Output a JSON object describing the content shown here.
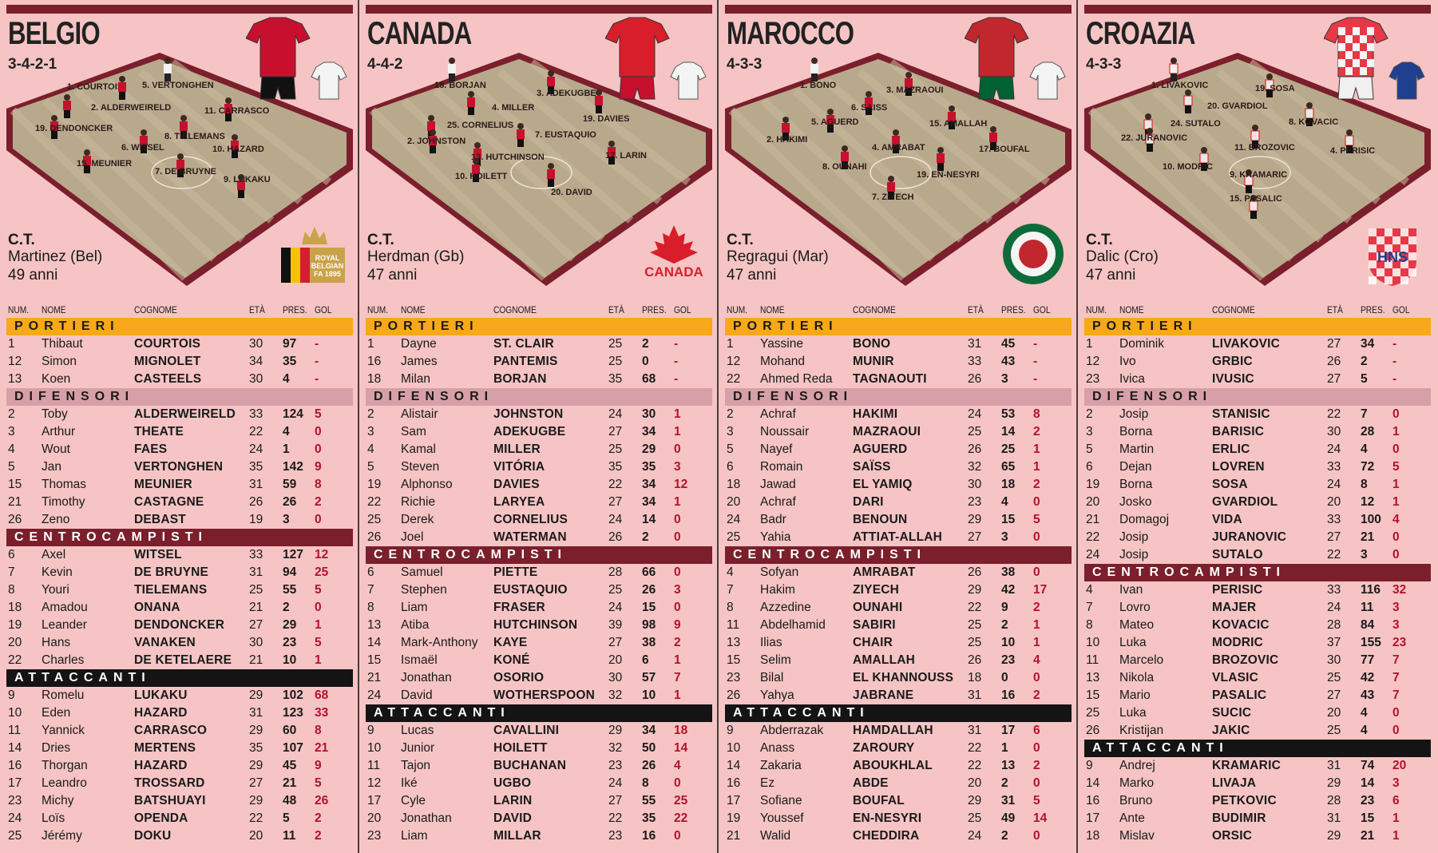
{
  "headers": {
    "num": "NUM.",
    "nome": "NOME",
    "cognome": "COGNOME",
    "eta": "ETÀ",
    "pres": "PRES.",
    "gol": "GOL"
  },
  "sections": {
    "portieri": "PORTIERI",
    "difensori": "DIFENSORI",
    "centrocampisti": "CENTROCAMPISTI",
    "attaccanti": "ATTACCANTI"
  },
  "colors": {
    "background": "#f6c4c4",
    "pitch": "#b9a98c",
    "pitch_border": "#7a1f2b",
    "portieri": "#f8a818",
    "difensori": "#d79fa8",
    "centrocampisti": "#7a1f2b",
    "attaccanti": "#141414",
    "goals": "#b3122b"
  },
  "teams": [
    {
      "name": "BELGIO",
      "formation": "3-4-2-1",
      "ct_label": "C.T.",
      "ct_name": "Martinez (Bel)",
      "ct_age": "49 anni",
      "badge_text": [
        "ROYAL",
        "BELGIAN",
        "FA 1895"
      ],
      "kit": "red-black",
      "pitch_players": [
        "1. COURTOIS",
        "5. VERTONGHEN",
        "2. ALDERWEIRELD",
        "11. CARRASCO",
        "19. DENDONCKER",
        "8. TIELEMANS",
        "6. WITSEL",
        "10. HAZARD",
        "15. MEUNIER",
        "7. DE BRUYNE",
        "9. LUKAKU"
      ],
      "portieri": [
        [
          "1",
          "Thibaut",
          "COURTOIS",
          "30",
          "97",
          "-"
        ],
        [
          "12",
          "Simon",
          "MIGNOLET",
          "34",
          "35",
          "-"
        ],
        [
          "13",
          "Koen",
          "CASTEELS",
          "30",
          "4",
          "-"
        ]
      ],
      "difensori": [
        [
          "2",
          "Toby",
          "ALDERWEIRELD",
          "33",
          "124",
          "5"
        ],
        [
          "3",
          "Arthur",
          "THEATE",
          "22",
          "4",
          "0"
        ],
        [
          "4",
          "Wout",
          "FAES",
          "24",
          "1",
          "0"
        ],
        [
          "5",
          "Jan",
          "VERTONGHEN",
          "35",
          "142",
          "9"
        ],
        [
          "15",
          "Thomas",
          "MEUNIER",
          "31",
          "59",
          "8"
        ],
        [
          "21",
          "Timothy",
          "CASTAGNE",
          "26",
          "26",
          "2"
        ],
        [
          "26",
          "Zeno",
          "DEBAST",
          "19",
          "3",
          "0"
        ]
      ],
      "centrocampisti": [
        [
          "6",
          "Axel",
          "WITSEL",
          "33",
          "127",
          "12"
        ],
        [
          "7",
          "Kevin",
          "DE BRUYNE",
          "31",
          "94",
          "25"
        ],
        [
          "8",
          "Youri",
          "TIELEMANS",
          "25",
          "55",
          "5"
        ],
        [
          "18",
          "Amadou",
          "ONANA",
          "21",
          "2",
          "0"
        ],
        [
          "19",
          "Leander",
          "DENDONCKER",
          "27",
          "29",
          "1"
        ],
        [
          "20",
          "Hans",
          "VANAKEN",
          "30",
          "23",
          "5"
        ],
        [
          "22",
          "Charles",
          "DE KETELAERE",
          "21",
          "10",
          "1"
        ]
      ],
      "attaccanti": [
        [
          "9",
          "Romelu",
          "LUKAKU",
          "29",
          "102",
          "68"
        ],
        [
          "10",
          "Eden",
          "HAZARD",
          "31",
          "123",
          "33"
        ],
        [
          "11",
          "Yannick",
          "CARRASCO",
          "29",
          "60",
          "8"
        ],
        [
          "14",
          "Dries",
          "MERTENS",
          "35",
          "107",
          "21"
        ],
        [
          "16",
          "Thorgan",
          "HAZARD",
          "29",
          "45",
          "9"
        ],
        [
          "17",
          "Leandro",
          "TROSSARD",
          "27",
          "21",
          "5"
        ],
        [
          "23",
          "Michy",
          "BATSHUAYI",
          "29",
          "48",
          "26"
        ],
        [
          "24",
          "Loïs",
          "OPENDA",
          "22",
          "5",
          "2"
        ],
        [
          "25",
          "Jérémy",
          "DOKU",
          "20",
          "11",
          "2"
        ]
      ]
    },
    {
      "name": "CANADA",
      "formation": "4-4-2",
      "ct_label": "C.T.",
      "ct_name": "Herdman (Gb)",
      "ct_age": "47 anni",
      "badge_text": [
        "CANADA"
      ],
      "kit": "red",
      "pitch_players": [
        "18. BORJAN",
        "3. ADEKUGBE",
        "4. MILLER",
        "19. DAVIES",
        "25. CORNELIUS",
        "7. EUSTAQUIO",
        "2. JOHNSTON",
        "13. HUTCHINSON",
        "17. LARIN",
        "10. HOILETT",
        "20. DAVID"
      ],
      "portieri": [
        [
          "1",
          "Dayne",
          "ST. CLAIR",
          "25",
          "2",
          "-"
        ],
        [
          "16",
          "James",
          "PANTEMIS",
          "25",
          "0",
          "-"
        ],
        [
          "18",
          "Milan",
          "BORJAN",
          "35",
          "68",
          "-"
        ]
      ],
      "difensori": [
        [
          "2",
          "Alistair",
          "JOHNSTON",
          "24",
          "30",
          "1"
        ],
        [
          "3",
          "Sam",
          "ADEKUGBE",
          "27",
          "34",
          "1"
        ],
        [
          "4",
          "Kamal",
          "MILLER",
          "25",
          "29",
          "0"
        ],
        [
          "5",
          "Steven",
          "VITÓRIA",
          "35",
          "35",
          "3"
        ],
        [
          "19",
          "Alphonso",
          "DAVIES",
          "22",
          "34",
          "12"
        ],
        [
          "22",
          "Richie",
          "LARYEA",
          "27",
          "34",
          "1"
        ],
        [
          "25",
          "Derek",
          "CORNELIUS",
          "24",
          "14",
          "0"
        ],
        [
          "26",
          "Joel",
          "WATERMAN",
          "26",
          "2",
          "0"
        ]
      ],
      "centrocampisti": [
        [
          "6",
          "Samuel",
          "PIETTE",
          "28",
          "66",
          "0"
        ],
        [
          "7",
          "Stephen",
          "EUSTAQUIO",
          "25",
          "26",
          "3"
        ],
        [
          "8",
          "Liam",
          "FRASER",
          "24",
          "15",
          "0"
        ],
        [
          "13",
          "Atiba",
          "HUTCHINSON",
          "39",
          "98",
          "9"
        ],
        [
          "14",
          "Mark-Anthony",
          "KAYE",
          "27",
          "38",
          "2"
        ],
        [
          "15",
          "Ismaël",
          "KONÉ",
          "20",
          "6",
          "1"
        ],
        [
          "21",
          "Jonathan",
          "OSORIO",
          "30",
          "57",
          "7"
        ],
        [
          "24",
          "David",
          "WOTHERSPOON",
          "32",
          "10",
          "1"
        ]
      ],
      "attaccanti": [
        [
          "9",
          "Lucas",
          "CAVALLINI",
          "29",
          "34",
          "18"
        ],
        [
          "10",
          "Junior",
          "HOILETT",
          "32",
          "50",
          "14"
        ],
        [
          "11",
          "Tajon",
          "BUCHANAN",
          "23",
          "26",
          "4"
        ],
        [
          "12",
          "Iké",
          "UGBO",
          "24",
          "8",
          "0"
        ],
        [
          "17",
          "Cyle",
          "LARIN",
          "27",
          "55",
          "25"
        ],
        [
          "20",
          "Jonathan",
          "DAVID",
          "22",
          "35",
          "22"
        ],
        [
          "23",
          "Liam",
          "MILLAR",
          "23",
          "16",
          "0"
        ]
      ]
    },
    {
      "name": "MAROCCO",
      "formation": "4-3-3",
      "ct_label": "C.T.",
      "ct_name": "Regragui (Mar)",
      "ct_age": "47 anni",
      "badge_text": [],
      "kit": "red-green",
      "pitch_players": [
        "1. BONO",
        "3. MAZRAOUI",
        "6. SAISS",
        "5. AGUERD",
        "15. AMALLAH",
        "2. HAKIMI",
        "4. AMRABAT",
        "17. BOUFAL",
        "8. OUNAHI",
        "19. EN-NESYRI",
        "7. ZIYECH"
      ],
      "portieri": [
        [
          "1",
          "Yassine",
          "BONO",
          "31",
          "45",
          "-"
        ],
        [
          "12",
          "Mohand",
          "MUNIR",
          "33",
          "43",
          "-"
        ],
        [
          "22",
          "Ahmed Reda",
          "TAGNAOUTI",
          "26",
          "3",
          "-"
        ]
      ],
      "difensori": [
        [
          "2",
          "Achraf",
          "HAKIMI",
          "24",
          "53",
          "8"
        ],
        [
          "3",
          "Noussair",
          "MAZRAOUI",
          "25",
          "14",
          "2"
        ],
        [
          "5",
          "Nayef",
          "AGUERD",
          "26",
          "25",
          "1"
        ],
        [
          "6",
          "Romain",
          "SAÏSS",
          "32",
          "65",
          "1"
        ],
        [
          "18",
          "Jawad",
          "EL YAMIQ",
          "30",
          "18",
          "2"
        ],
        [
          "20",
          "Achraf",
          "DARI",
          "23",
          "4",
          "0"
        ],
        [
          "24",
          "Badr",
          "BENOUN",
          "29",
          "15",
          "5"
        ],
        [
          "25",
          "Yahia",
          "ATTIAT-ALLAH",
          "27",
          "3",
          "0"
        ]
      ],
      "centrocampisti": [
        [
          "4",
          "Sofyan",
          "AMRABAT",
          "26",
          "38",
          "0"
        ],
        [
          "7",
          "Hakim",
          "ZIYECH",
          "29",
          "42",
          "17"
        ],
        [
          "8",
          "Azzedine",
          "OUNAHI",
          "22",
          "9",
          "2"
        ],
        [
          "11",
          "Abdelhamid",
          "SABIRI",
          "25",
          "2",
          "1"
        ],
        [
          "13",
          "Ilias",
          "CHAIR",
          "25",
          "10",
          "1"
        ],
        [
          "15",
          "Selim",
          "AMALLAH",
          "26",
          "23",
          "4"
        ],
        [
          "23",
          "Bilal",
          "EL KHANNOUSS",
          "18",
          "0",
          "0"
        ],
        [
          "26",
          "Yahya",
          "JABRANE",
          "31",
          "16",
          "2"
        ]
      ],
      "attaccanti": [
        [
          "9",
          "Abderrazak",
          "HAMDALLAH",
          "31",
          "17",
          "6"
        ],
        [
          "10",
          "Anass",
          "ZAROURY",
          "22",
          "1",
          "0"
        ],
        [
          "14",
          "Zakaria",
          "ABOUKHLAL",
          "22",
          "13",
          "2"
        ],
        [
          "16",
          "Ez",
          "ABDE",
          "20",
          "2",
          "0"
        ],
        [
          "17",
          "Sofiane",
          "BOUFAL",
          "29",
          "31",
          "5"
        ],
        [
          "19",
          "Youssef",
          "EN-NESYRI",
          "25",
          "49",
          "14"
        ],
        [
          "21",
          "Walid",
          "CHEDDIRA",
          "24",
          "2",
          "0"
        ]
      ]
    },
    {
      "name": "CROAZIA",
      "formation": "4-3-3",
      "ct_label": "C.T.",
      "ct_name": "Dalic (Cro)",
      "ct_age": "47 anni",
      "badge_text": [
        "HNS"
      ],
      "kit": "checkered",
      "pitch_players": [
        "1. LIVAKOVIC",
        "19. SOSA",
        "20. GVARDIOL",
        "24. SUTALO",
        "8. KOVACIC",
        "22. JURANOVIC",
        "11. BROZOVIC",
        "4. PERISIC",
        "10. MODRIC",
        "9. KRAMARIC",
        "15. PASALIC"
      ],
      "portieri": [
        [
          "1",
          "Dominik",
          "LIVAKOVIC",
          "27",
          "34",
          "-"
        ],
        [
          "12",
          "Ivo",
          "GRBIC",
          "26",
          "2",
          "-"
        ],
        [
          "23",
          "Ivica",
          "IVUSIC",
          "27",
          "5",
          "-"
        ]
      ],
      "difensori": [
        [
          "2",
          "Josip",
          "STANISIC",
          "22",
          "7",
          "0"
        ],
        [
          "3",
          "Borna",
          "BARISIC",
          "30",
          "28",
          "1"
        ],
        [
          "5",
          "Martin",
          "ERLIC",
          "24",
          "4",
          "0"
        ],
        [
          "6",
          "Dejan",
          "LOVREN",
          "33",
          "72",
          "5"
        ],
        [
          "19",
          "Borna",
          "SOSA",
          "24",
          "8",
          "1"
        ],
        [
          "20",
          "Josko",
          "GVARDIOL",
          "20",
          "12",
          "1"
        ],
        [
          "21",
          "Domagoj",
          "VIDA",
          "33",
          "100",
          "4"
        ],
        [
          "22",
          "Josip",
          "JURANOVIC",
          "27",
          "21",
          "0"
        ],
        [
          "24",
          "Josip",
          "SUTALO",
          "22",
          "3",
          "0"
        ]
      ],
      "centrocampisti": [
        [
          "4",
          "Ivan",
          "PERISIC",
          "33",
          "116",
          "32"
        ],
        [
          "7",
          "Lovro",
          "MAJER",
          "24",
          "11",
          "3"
        ],
        [
          "8",
          "Mateo",
          "KOVACIC",
          "28",
          "84",
          "3"
        ],
        [
          "10",
          "Luka",
          "MODRIC",
          "37",
          "155",
          "23"
        ],
        [
          "11",
          "Marcelo",
          "BROZOVIC",
          "30",
          "77",
          "7"
        ],
        [
          "13",
          "Nikola",
          "VLASIC",
          "25",
          "42",
          "7"
        ],
        [
          "15",
          "Mario",
          "PASALIC",
          "27",
          "43",
          "7"
        ],
        [
          "25",
          "Luka",
          "SUCIC",
          "20",
          "4",
          "0"
        ],
        [
          "26",
          "Kristijan",
          "JAKIC",
          "25",
          "4",
          "0"
        ]
      ],
      "attaccanti": [
        [
          "9",
          "Andrej",
          "KRAMARIC",
          "31",
          "74",
          "20"
        ],
        [
          "14",
          "Marko",
          "LIVAJA",
          "29",
          "14",
          "3"
        ],
        [
          "16",
          "Bruno",
          "PETKOVIC",
          "28",
          "23",
          "6"
        ],
        [
          "17",
          "Ante",
          "BUDIMIR",
          "31",
          "15",
          "1"
        ],
        [
          "18",
          "Mislav",
          "ORSIC",
          "29",
          "21",
          "1"
        ]
      ]
    }
  ]
}
